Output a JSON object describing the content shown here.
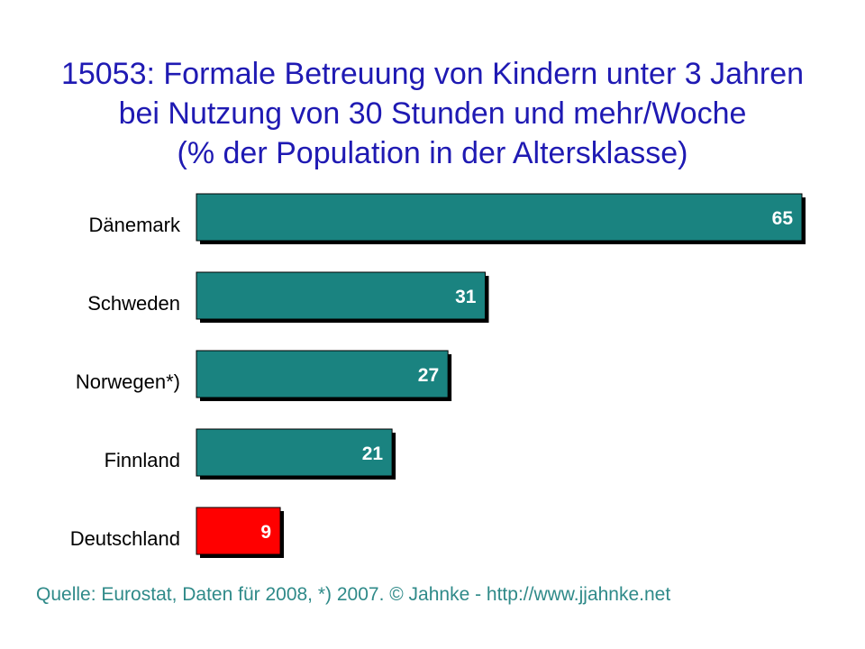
{
  "title": {
    "line1": "15053: Formale Betreuung von Kindern unter 3 Jahren",
    "line2": "bei Nutzung von 30 Stunden und mehr/Woche",
    "line3": "(% der Population in der Altersklasse)"
  },
  "source": "Quelle: Eurostat, Daten für 2008, *) 2007. © Jahnke - http://www.jjahnke.net",
  "colors": {
    "title": "#1f1ab3",
    "bar_default": "#1a8380",
    "bar_highlight": "#ff0000",
    "source": "#2f8a89"
  },
  "chart_data": {
    "type": "bar",
    "orientation": "horizontal",
    "categories": [
      "Dänemark",
      "Schweden",
      "Norwegen*)",
      "Finnland",
      "Deutschland"
    ],
    "values": [
      65,
      31,
      27,
      21,
      9
    ],
    "highlight": [
      "Deutschland"
    ],
    "xlim": [
      0,
      65
    ],
    "grid": false,
    "legend": "none"
  }
}
